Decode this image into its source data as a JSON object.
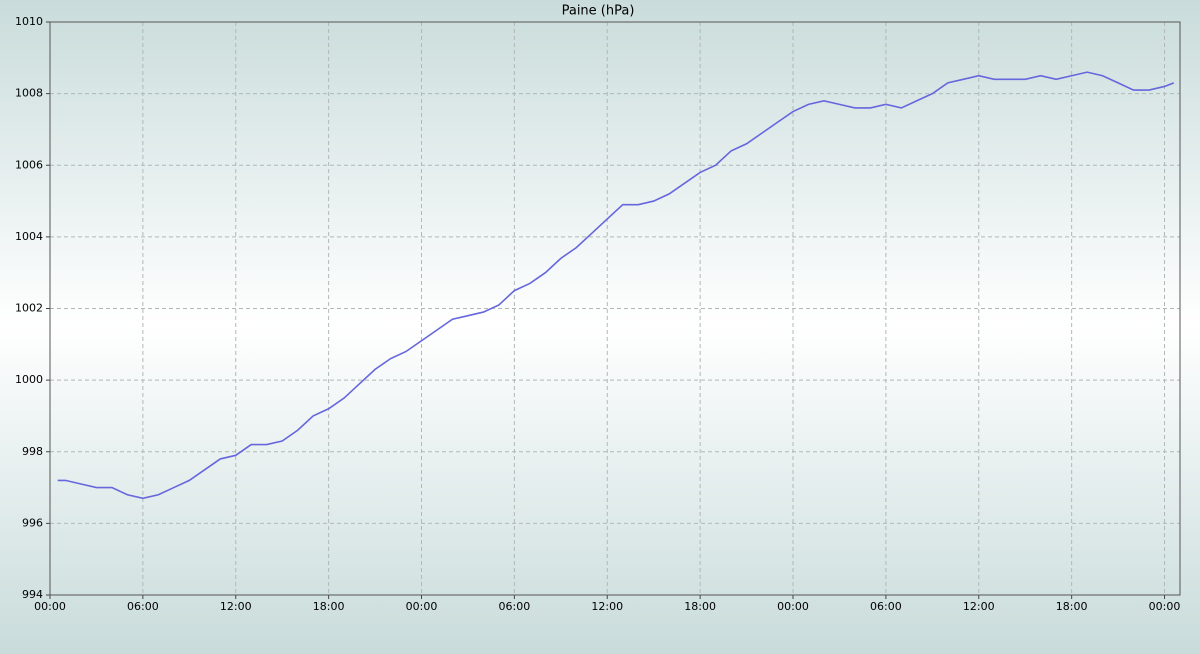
{
  "chart_data": {
    "type": "line",
    "title": "Paine (hPa)",
    "x": [
      0.5,
      1,
      2,
      3,
      4,
      5,
      6,
      7,
      8,
      9,
      10,
      11,
      12,
      13,
      14,
      15,
      16,
      17,
      18,
      19,
      20,
      21,
      22,
      23,
      24,
      25,
      26,
      27,
      28,
      29,
      30,
      31,
      32,
      33,
      34,
      35,
      36,
      37,
      38,
      39,
      40,
      41,
      42,
      43,
      44,
      45,
      46,
      47,
      48,
      49,
      50,
      51,
      52,
      53,
      54,
      55,
      56,
      57,
      58,
      59,
      60,
      61,
      62,
      63,
      64,
      65,
      66,
      67,
      68,
      69,
      70,
      71,
      72,
      72.6
    ],
    "series": [
      {
        "color": "#6666dd",
        "values": [
          997.2,
          997.2,
          997.1,
          997.0,
          997.0,
          996.8,
          996.7,
          996.8,
          997.0,
          997.2,
          997.5,
          997.8,
          997.9,
          998.2,
          998.2,
          998.3,
          998.6,
          999.0,
          999.2,
          999.5,
          999.9,
          1000.3,
          1000.6,
          1000.8,
          1001.1,
          1001.4,
          1001.7,
          1001.8,
          1001.9,
          1002.1,
          1002.5,
          1002.7,
          1003.0,
          1003.4,
          1003.7,
          1004.1,
          1004.5,
          1004.9,
          1004.9,
          1005.0,
          1005.2,
          1005.5,
          1005.8,
          1006.0,
          1006.4,
          1006.6,
          1006.9,
          1007.2,
          1007.5,
          1007.7,
          1007.8,
          1007.7,
          1007.6,
          1007.6,
          1007.7,
          1007.6,
          1007.8,
          1008.0,
          1008.3,
          1008.4,
          1008.5,
          1008.4,
          1008.4,
          1008.4,
          1008.5,
          1008.4,
          1008.5,
          1008.6,
          1008.5,
          1008.3,
          1008.1,
          1008.1,
          1008.2,
          1008.3
        ]
      }
    ],
    "xlim": [
      0,
      73
    ],
    "xticks": [
      {
        "value": 0,
        "label": "00:00"
      },
      {
        "value": 6,
        "label": "06:00"
      },
      {
        "value": 12,
        "label": "12:00"
      },
      {
        "value": 18,
        "label": "18:00"
      },
      {
        "value": 24,
        "label": "00:00"
      },
      {
        "value": 30,
        "label": "06:00"
      },
      {
        "value": 36,
        "label": "12:00"
      },
      {
        "value": 42,
        "label": "18:00"
      },
      {
        "value": 48,
        "label": "00:00"
      },
      {
        "value": 54,
        "label": "06:00"
      },
      {
        "value": 60,
        "label": "12:00"
      },
      {
        "value": 66,
        "label": "18:00"
      },
      {
        "value": 72,
        "label": "00:00"
      }
    ],
    "ylim": [
      994,
      1010
    ],
    "yticks": [
      994,
      996,
      998,
      1000,
      1002,
      1004,
      1006,
      1008,
      1010
    ],
    "grid": true
  }
}
